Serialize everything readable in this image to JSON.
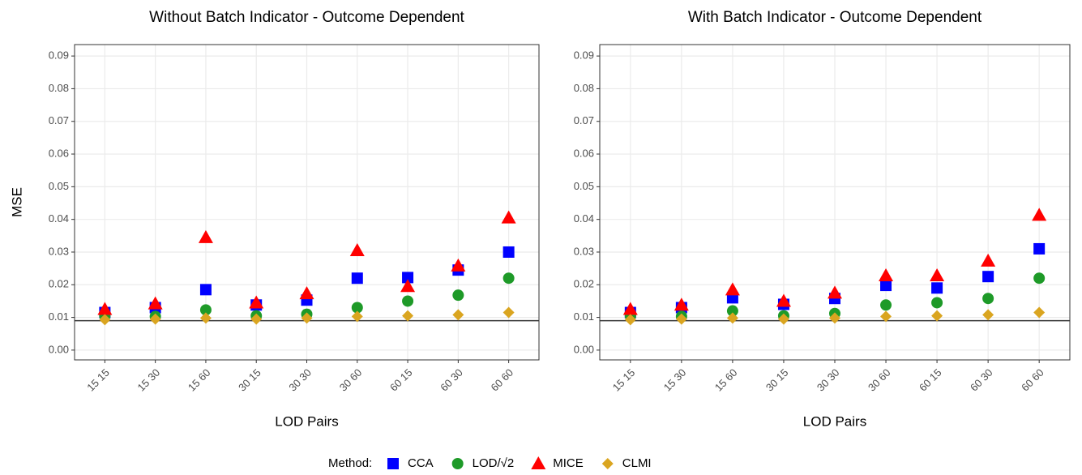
{
  "chart_data": [
    {
      "type": "scatter",
      "title": "Without Batch Indicator - Outcome Dependent",
      "xlabel": "LOD Pairs",
      "ylabel": "MSE",
      "legend_title": "Method:",
      "categories": [
        "15 15",
        "15 30",
        "15 60",
        "30 15",
        "30 30",
        "30 60",
        "60 15",
        "60 30",
        "60 60"
      ],
      "ylim": [
        -0.003,
        0.0935
      ],
      "yticks": [
        {
          "value": 0,
          "label": "0.00"
        },
        {
          "value": 0.01,
          "label": "0.01"
        },
        {
          "value": 0.02,
          "label": "0.02"
        },
        {
          "value": 0.03,
          "label": "0.03"
        },
        {
          "value": 0.04,
          "label": "0.04"
        },
        {
          "value": 0.05,
          "label": "0.05"
        },
        {
          "value": 0.06,
          "label": "0.06"
        },
        {
          "value": 0.07,
          "label": "0.07"
        },
        {
          "value": 0.08,
          "label": "0.08"
        },
        {
          "value": 0.09,
          "label": "0.09"
        }
      ],
      "grid": true,
      "hline": 0.009,
      "legend": "bottom",
      "series": [
        {
          "name": "CCA",
          "color": "#0000ff",
          "shape": "square",
          "values": [
            0.0115,
            0.013,
            0.0185,
            0.0138,
            0.0153,
            0.022,
            0.0222,
            0.0245,
            0.03
          ]
        },
        {
          "name": "LOD/√2",
          "color": "#1e9a28",
          "shape": "circle",
          "values": [
            0.0105,
            0.0103,
            0.0123,
            0.0105,
            0.011,
            0.013,
            0.015,
            0.0168,
            0.022
          ]
        },
        {
          "name": "MICE",
          "color": "#ff0000",
          "shape": "triangle",
          "values": [
            0.0125,
            0.0142,
            0.0345,
            0.0145,
            0.0173,
            0.0305,
            0.0195,
            0.0258,
            0.0405
          ]
        },
        {
          "name": "CLMI",
          "color": "#daa520",
          "shape": "diamond",
          "values": [
            0.0093,
            0.0095,
            0.0098,
            0.0095,
            0.0098,
            0.0103,
            0.0105,
            0.0108,
            0.0115
          ]
        }
      ]
    },
    {
      "type": "scatter",
      "title": "With Batch Indicator - Outcome Dependent",
      "xlabel": "LOD Pairs",
      "categories": [
        "15 15",
        "15 30",
        "15 60",
        "30 15",
        "30 30",
        "30 60",
        "60 15",
        "60 30",
        "60 60"
      ],
      "ylim": [
        -0.003,
        0.0935
      ],
      "yticks": [
        {
          "value": 0,
          "label": "0.00"
        },
        {
          "value": 0.01,
          "label": "0.01"
        },
        {
          "value": 0.02,
          "label": "0.02"
        },
        {
          "value": 0.03,
          "label": "0.03"
        },
        {
          "value": 0.04,
          "label": "0.04"
        },
        {
          "value": 0.05,
          "label": "0.05"
        },
        {
          "value": 0.06,
          "label": "0.06"
        },
        {
          "value": 0.07,
          "label": "0.07"
        },
        {
          "value": 0.08,
          "label": "0.08"
        },
        {
          "value": 0.09,
          "label": "0.09"
        }
      ],
      "grid": true,
      "hline": 0.009,
      "series": [
        {
          "color": "#0000ff",
          "shape": "square",
          "values": [
            0.0115,
            0.013,
            0.016,
            0.014,
            0.0158,
            0.0198,
            0.019,
            0.0225,
            0.031
          ]
        },
        {
          "color": "#1e9a28",
          "shape": "circle",
          "values": [
            0.0105,
            0.0103,
            0.012,
            0.0105,
            0.0112,
            0.0138,
            0.0145,
            0.0158,
            0.022
          ]
        },
        {
          "color": "#ff0000",
          "shape": "triangle",
          "values": [
            0.0125,
            0.0138,
            0.0185,
            0.015,
            0.0175,
            0.0228,
            0.0228,
            0.0273,
            0.0413
          ]
        },
        {
          "color": "#daa520",
          "shape": "diamond",
          "values": [
            0.0093,
            0.0095,
            0.0098,
            0.0095,
            0.0098,
            0.0103,
            0.0105,
            0.0108,
            0.0115
          ]
        }
      ]
    }
  ]
}
